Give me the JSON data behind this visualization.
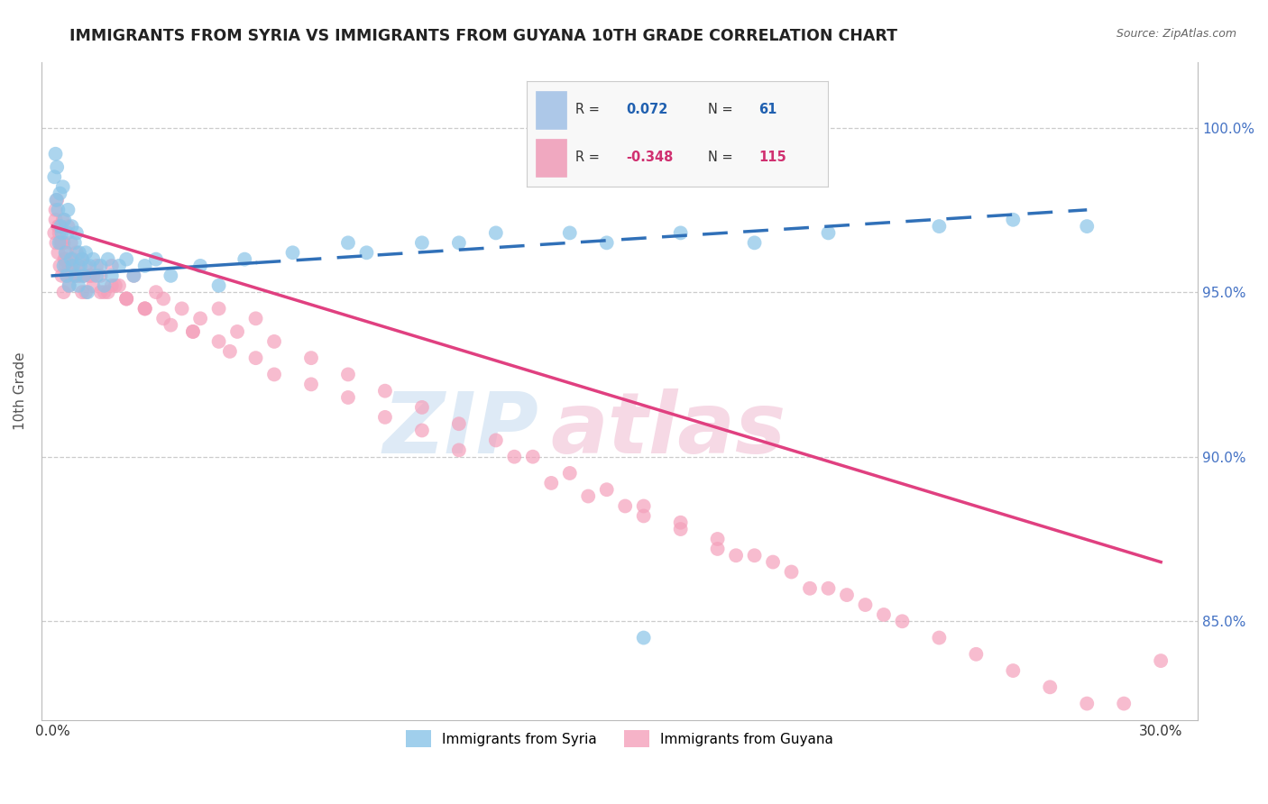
{
  "title": "IMMIGRANTS FROM SYRIA VS IMMIGRANTS FROM GUYANA 10TH GRADE CORRELATION CHART",
  "source": "Source: ZipAtlas.com",
  "ylabel": "10th Grade",
  "y_ticks": [
    85.0,
    90.0,
    95.0,
    100.0
  ],
  "y_tick_labels": [
    "85.0%",
    "90.0%",
    "95.0%",
    "100.0%"
  ],
  "y_min": 82.0,
  "y_max": 102.0,
  "x_min": -0.3,
  "x_max": 31.0,
  "blue_color": "#89c4e8",
  "pink_color": "#f4a0bb",
  "blue_line_color": "#3070b8",
  "pink_line_color": "#e04080",
  "background_color": "#ffffff",
  "syria_x": [
    0.05,
    0.08,
    0.1,
    0.12,
    0.15,
    0.18,
    0.2,
    0.22,
    0.25,
    0.28,
    0.3,
    0.32,
    0.35,
    0.38,
    0.4,
    0.42,
    0.45,
    0.5,
    0.52,
    0.55,
    0.6,
    0.62,
    0.65,
    0.7,
    0.72,
    0.75,
    0.8,
    0.85,
    0.9,
    0.95,
    1.0,
    1.1,
    1.2,
    1.3,
    1.4,
    1.5,
    1.6,
    1.8,
    2.0,
    2.2,
    2.5,
    2.8,
    3.2,
    4.0,
    4.5,
    5.2,
    6.5,
    8.0,
    10.0,
    12.0,
    15.0,
    17.0,
    19.0,
    21.0,
    24.0,
    26.0,
    28.0,
    8.5,
    11.0,
    14.0,
    16.0
  ],
  "syria_y": [
    98.5,
    99.2,
    97.8,
    98.8,
    97.5,
    96.5,
    98.0,
    97.0,
    96.8,
    98.2,
    95.8,
    97.2,
    96.2,
    95.5,
    96.8,
    97.5,
    95.2,
    96.0,
    97.0,
    95.8,
    96.5,
    95.5,
    96.8,
    95.2,
    96.2,
    95.8,
    96.0,
    95.5,
    96.2,
    95.0,
    95.8,
    96.0,
    95.5,
    95.8,
    95.2,
    96.0,
    95.5,
    95.8,
    96.0,
    95.5,
    95.8,
    96.0,
    95.5,
    95.8,
    95.2,
    96.0,
    96.2,
    96.5,
    96.5,
    96.8,
    96.5,
    96.8,
    96.5,
    96.8,
    97.0,
    97.2,
    97.0,
    96.2,
    96.5,
    96.8,
    84.5
  ],
  "guyana_x": [
    0.05,
    0.08,
    0.1,
    0.12,
    0.15,
    0.18,
    0.2,
    0.22,
    0.25,
    0.28,
    0.3,
    0.32,
    0.35,
    0.38,
    0.4,
    0.42,
    0.45,
    0.5,
    0.52,
    0.55,
    0.6,
    0.65,
    0.7,
    0.75,
    0.8,
    0.85,
    0.9,
    1.0,
    1.1,
    1.2,
    1.3,
    1.5,
    1.6,
    1.8,
    2.0,
    2.2,
    2.5,
    2.8,
    3.0,
    3.5,
    4.0,
    4.5,
    5.0,
    5.5,
    6.0,
    7.0,
    8.0,
    9.0,
    10.0,
    11.0,
    12.0,
    13.0,
    14.0,
    15.0,
    16.0,
    17.0,
    18.0,
    19.0,
    20.0,
    21.0,
    22.0,
    23.0,
    24.0,
    25.0,
    26.0,
    27.0,
    28.0,
    29.0,
    30.0,
    0.15,
    0.25,
    0.35,
    0.5,
    0.7,
    0.9,
    1.1,
    1.4,
    1.7,
    2.0,
    2.5,
    3.0,
    3.8,
    4.5,
    5.5,
    7.0,
    9.0,
    11.0,
    13.5,
    15.5,
    18.0,
    20.5,
    22.5,
    0.08,
    0.18,
    0.3,
    0.45,
    0.6,
    0.8,
    1.0,
    1.3,
    1.6,
    2.0,
    2.5,
    3.2,
    3.8,
    4.8,
    6.0,
    8.0,
    10.0,
    12.5,
    14.5,
    17.0,
    19.5,
    21.5,
    16.0,
    18.5
  ],
  "guyana_y": [
    96.8,
    97.5,
    96.5,
    97.8,
    96.2,
    97.0,
    95.8,
    96.5,
    95.5,
    97.2,
    95.0,
    96.0,
    95.8,
    96.2,
    95.5,
    97.0,
    95.2,
    96.5,
    95.8,
    96.0,
    95.5,
    96.2,
    95.8,
    95.5,
    96.0,
    95.5,
    95.8,
    95.5,
    95.2,
    95.8,
    95.5,
    95.0,
    95.8,
    95.2,
    94.8,
    95.5,
    94.5,
    95.0,
    94.8,
    94.5,
    94.2,
    94.5,
    93.8,
    94.2,
    93.5,
    93.0,
    92.5,
    92.0,
    91.5,
    91.0,
    90.5,
    90.0,
    89.5,
    89.0,
    88.5,
    88.0,
    87.5,
    87.0,
    86.5,
    86.0,
    85.5,
    85.0,
    84.5,
    84.0,
    83.5,
    83.0,
    82.5,
    82.5,
    83.8,
    97.0,
    96.5,
    96.0,
    95.8,
    95.5,
    95.0,
    95.5,
    95.0,
    95.2,
    94.8,
    94.5,
    94.2,
    93.8,
    93.5,
    93.0,
    92.2,
    91.2,
    90.2,
    89.2,
    88.5,
    87.2,
    86.0,
    85.2,
    97.2,
    96.8,
    96.5,
    95.8,
    95.5,
    95.0,
    95.5,
    95.0,
    95.2,
    94.8,
    94.5,
    94.0,
    93.8,
    93.2,
    92.5,
    91.8,
    90.8,
    90.0,
    88.8,
    87.8,
    86.8,
    85.8,
    88.2,
    87.0
  ],
  "syria_trend_x0": 0.0,
  "syria_trend_y0": 95.5,
  "syria_trend_x1": 28.0,
  "syria_trend_y1": 97.5,
  "guyana_trend_x0": 0.0,
  "guyana_trend_y0": 97.0,
  "guyana_trend_x1": 30.0,
  "guyana_trend_y1": 86.8
}
